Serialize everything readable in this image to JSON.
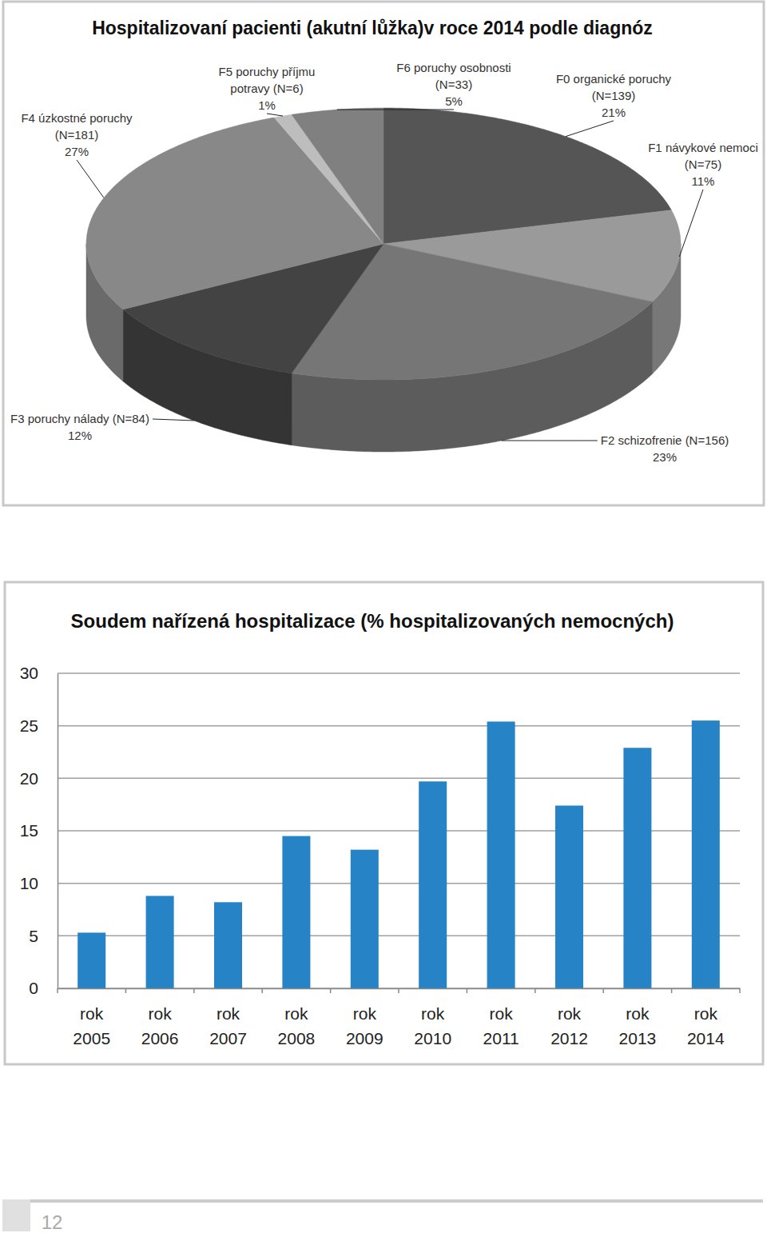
{
  "chart_data": [
    {
      "type": "pie",
      "title": "Hospitalizovaní pacienti (akutní lůžka)v roce 2014 podle diagnóz",
      "categories": [
        "F0 organické poruchy\n(N=139)",
        "F1 návykové nemoci\n(N=75)",
        "F2 schizofrenie (N=156)",
        "F3 poruchy nálady (N=84)",
        "F4 úzkostné poruchy\n(N=181)",
        "F5 poruchy příjmu\npotravy (N=6)",
        "F6 poruchy osobnosti\n(N=33)"
      ],
      "values": [
        21,
        11,
        23,
        12,
        27,
        1,
        5
      ],
      "value_labels": [
        "21%",
        "11%",
        "23%",
        "12%",
        "27%",
        "1%",
        "5%"
      ],
      "colors": [
        "#555555",
        "#9a9a9a",
        "#767676",
        "#434343",
        "#888888",
        "#bdbdbd",
        "#808080"
      ],
      "data_labels": true
    },
    {
      "type": "bar",
      "title": "Soudem nařízená hospitalizace (% hospitalizovaných nemocných)",
      "categories": [
        "rok\n2005",
        "rok\n2006",
        "rok\n2007",
        "rok\n2008",
        "rok\n2009",
        "rok\n2010",
        "rok\n2011",
        "rok\n2012",
        "rok\n2013",
        "rok\n2014"
      ],
      "values": [
        5.3,
        8.8,
        8.2,
        14.5,
        13.2,
        19.7,
        25.4,
        17.4,
        22.9,
        25.5
      ],
      "color": "#2683c6",
      "ylim": [
        0,
        30
      ],
      "yticks": [
        0,
        5,
        10,
        15,
        20,
        25,
        30
      ],
      "grid": true
    }
  ],
  "page_number": "12"
}
